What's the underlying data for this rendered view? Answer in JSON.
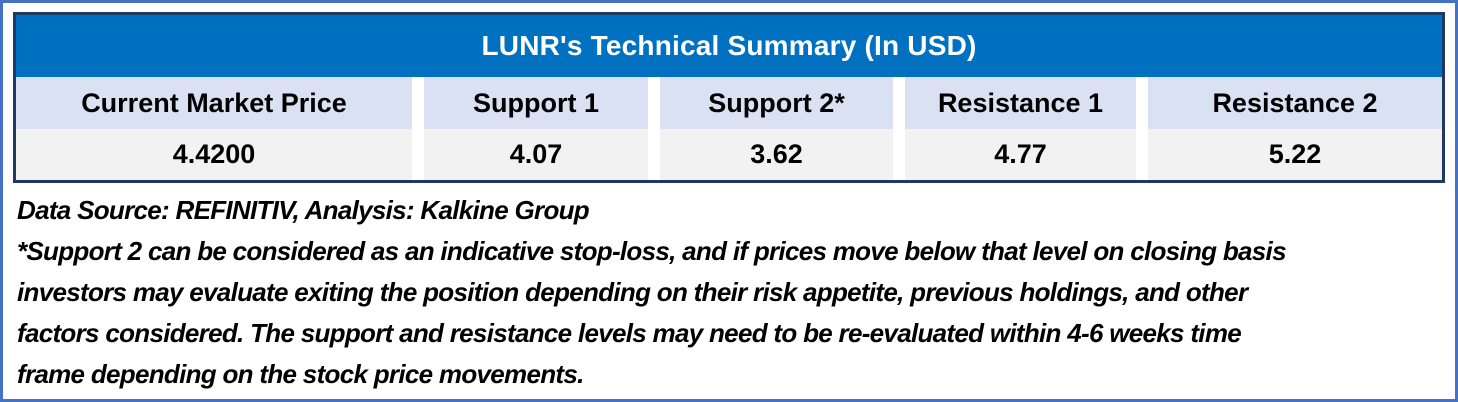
{
  "chart_data": {
    "type": "table",
    "title": "LUNR's Technical Summary (In USD)",
    "columns": [
      "Current Market Price",
      "Support 1",
      "Support 2*",
      "Resistance 1",
      "Resistance 2"
    ],
    "rows": [
      [
        "4.4200",
        "4.07",
        "3.62",
        "4.77",
        "5.22"
      ]
    ],
    "values": {
      "current_market_price": 4.42,
      "support_1": 4.07,
      "support_2": 3.62,
      "resistance_1": 4.77,
      "resistance_2": 5.22
    },
    "currency": "USD"
  },
  "footer": {
    "source_line": "Data Source: REFINITIV, Analysis: Kalkine Group",
    "disclaimer_lines": [
      "*Support 2 can be considered as an indicative stop-loss, and if prices move below that level on closing basis",
      "investors may evaluate exiting the position depending on their risk appetite, previous holdings, and other",
      "factors considered. The support and resistance levels may need to be re-evaluated within 4-6 weeks time",
      "frame depending on the stock price movements."
    ]
  },
  "colors": {
    "title_bg": "#0070C0",
    "title_text": "#FFFFFF",
    "header_bg": "#D9E1F2",
    "value_bg": "#F2F2F2",
    "table_border": "#1F3864",
    "frame_border": "#4472C4",
    "text": "#000000"
  }
}
